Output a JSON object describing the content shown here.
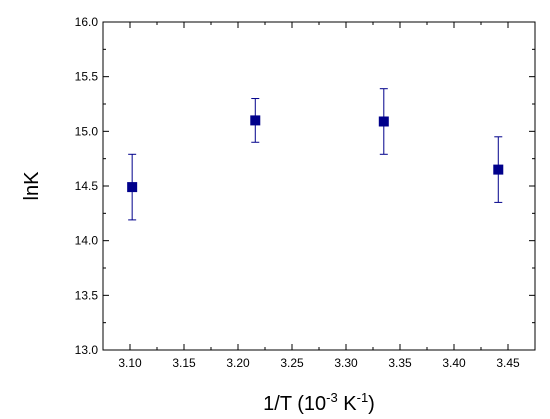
{
  "chart_data": {
    "type": "scatter",
    "title": "",
    "xlabel": {
      "main": "1/T (10",
      "exp1": "-3",
      "mid": " K",
      "exp2": "-1",
      "end": ")"
    },
    "ylabel": "lnK",
    "xlim": [
      3.075,
      3.475
    ],
    "ylim": [
      13.0,
      16.0
    ],
    "x_ticks": [
      "3.10",
      "3.15",
      "3.20",
      "3.25",
      "3.30",
      "3.35",
      "3.40",
      "3.45"
    ],
    "y_ticks": [
      "13.0",
      "13.5",
      "14.0",
      "14.5",
      "15.0",
      "15.5",
      "16.0"
    ],
    "grid": false,
    "legend": "none",
    "marker": "square",
    "color": "#00008B",
    "points": [
      {
        "x": 3.102,
        "y": 14.49,
        "err": 0.3
      },
      {
        "x": 3.216,
        "y": 15.1,
        "err": 0.2
      },
      {
        "x": 3.335,
        "y": 15.09,
        "err": 0.3
      },
      {
        "x": 3.441,
        "y": 14.65,
        "err": 0.3
      }
    ]
  }
}
